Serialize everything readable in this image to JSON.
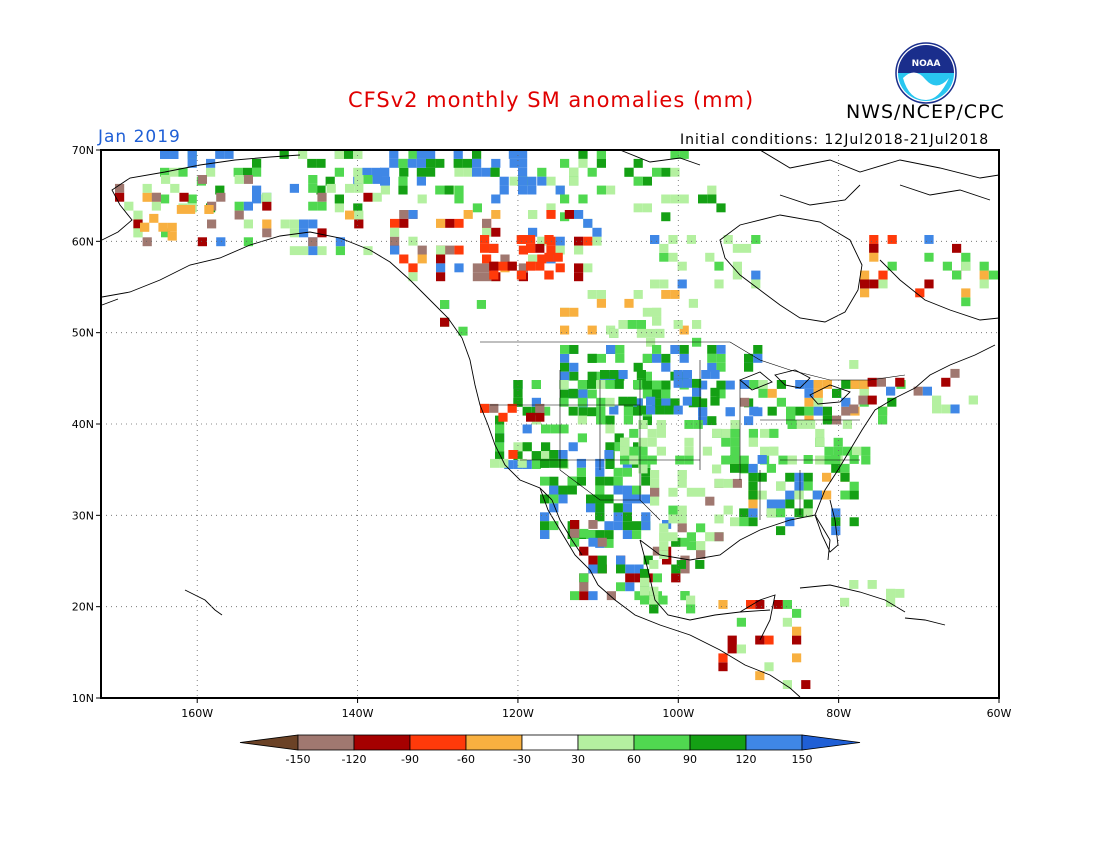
{
  "header": {
    "title": "CFSv2 monthly SM anomalies (mm)",
    "organization": "NWS/NCEP/CPC",
    "period": "Jan 2019",
    "initial_conditions": "Initial conditions: 12Jul2018-21Jul2018",
    "logo_text": "NOAA",
    "title_color": "#e00000",
    "period_color": "#1f5fd6"
  },
  "map": {
    "lon_range": [
      -172,
      -60
    ],
    "lat_range": [
      10,
      70
    ],
    "lon_ticks": [
      "160W",
      "140W",
      "120W",
      "100W",
      "80W",
      "60W"
    ],
    "lat_ticks": [
      "70N",
      "60N",
      "50N",
      "40N",
      "30N",
      "20N",
      "10N"
    ]
  },
  "legend": {
    "labels": [
      "-150",
      "-120",
      "-90",
      "-60",
      "-30",
      "30",
      "60",
      "90",
      "120",
      "150"
    ],
    "colors": [
      "#6b4226",
      "#a07870",
      "#a50000",
      "#ff3a0a",
      "#f8b040",
      "#ffffff",
      "#b4f0a0",
      "#50d850",
      "#14a014",
      "#3f87e6",
      "#1f5fd6"
    ]
  },
  "anomaly_colors": {
    "dark_brown": "#6b4226",
    "brown": "#a07870",
    "dark_red": "#a50000",
    "red": "#ff3a0a",
    "orange": "#f8b040",
    "light_green": "#b4f0a0",
    "green": "#50d850",
    "dark_green": "#14a014",
    "blue": "#3f87e6"
  }
}
